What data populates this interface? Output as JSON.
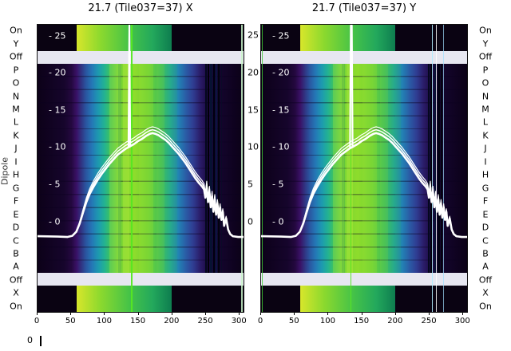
{
  "figure": {
    "bg": "#ffffff"
  },
  "chart_data": {
    "type": "heatmap",
    "panels": [
      {
        "title": "21.7 (Tile037=37) X",
        "right_axis_labels": true,
        "spike": [
          [
            136,
            10.05
          ],
          [
            137.3,
            26.4
          ],
          [
            138.6,
            10.15
          ]
        ],
        "stripes": [
          {
            "x": 140,
            "w": 1.5,
            "c": "#55e822",
            "a": 0.95,
            "span": "full",
            "name": "bright-green-line"
          },
          {
            "x": 305,
            "w": 1.2,
            "c": "#c8f5c8",
            "a": 0.85,
            "span": "full",
            "name": "bright-line"
          },
          {
            "x": 251,
            "w": 2,
            "c": "#04081e",
            "span": "main",
            "name": "dark-stripe"
          },
          {
            "x": 254.5,
            "w": 1.5,
            "c": "#000008",
            "span": "main",
            "name": "dark-stripe"
          },
          {
            "x": 258,
            "w": 2.5,
            "c": "#071233",
            "span": "main",
            "name": "dark-stripe"
          },
          {
            "x": 263,
            "w": 2,
            "c": "#000010",
            "span": "main",
            "name": "dark-stripe"
          },
          {
            "x": 266.5,
            "w": 1.5,
            "c": "#0a1640",
            "span": "main",
            "name": "dark-stripe"
          },
          {
            "x": 270,
            "w": 2,
            "c": "#02040f",
            "span": "main",
            "name": "dark-stripe"
          },
          {
            "x": 274,
            "w": 1.5,
            "c": "#0a0a28",
            "span": "main",
            "name": "dark-stripe"
          }
        ]
      },
      {
        "title": "21.7 (Tile037=37) Y",
        "right_axis_labels": false,
        "spike": [
          [
            133,
            9.9
          ],
          [
            134.2,
            26.4
          ],
          [
            135.6,
            26.4
          ],
          [
            136.8,
            10.0
          ]
        ],
        "stripes": [
          {
            "x": 1,
            "w": 1.5,
            "c": "#3fca35",
            "a": 0.8,
            "span": "full",
            "name": "bright-green-line"
          },
          {
            "x": 133.5,
            "w": 1.2,
            "c": "#55e822",
            "a": 0.95,
            "span": "full",
            "name": "bright-green-line"
          },
          {
            "x": 249,
            "w": 2,
            "c": "#04081e",
            "span": "main",
            "name": "dark-stripe"
          },
          {
            "x": 253,
            "w": 3,
            "c": "#000008",
            "span": "main",
            "name": "dark-stripe"
          },
          {
            "x": 259,
            "w": 2,
            "c": "#071233",
            "span": "main",
            "name": "dark-stripe"
          },
          {
            "x": 264,
            "w": 3,
            "c": "#000010",
            "span": "main",
            "name": "dark-stripe"
          },
          {
            "x": 269,
            "w": 2,
            "c": "#02040f",
            "span": "main",
            "name": "dark-stripe"
          },
          {
            "x": 256,
            "w": 1,
            "c": "#b0ecff",
            "a": 0.9,
            "span": "full",
            "name": "bright-line"
          },
          {
            "x": 262,
            "w": 1,
            "c": "#ffffff",
            "a": 0.85,
            "span": "full",
            "name": "bright-line"
          },
          {
            "x": 272,
            "w": 1,
            "c": "#9fe0ff",
            "a": 0.7,
            "span": "full",
            "name": "bright-line"
          }
        ]
      }
    ],
    "x_ticks": [
      0,
      50,
      100,
      150,
      200,
      250,
      300
    ],
    "x_range": [
      0,
      308
    ],
    "y_ticks": [
      25,
      20,
      15,
      10,
      5,
      0
    ],
    "y_range_view": [
      -12.2,
      26.5
    ],
    "row_labels": [
      "On",
      "Y",
      "Off",
      "P",
      "O",
      "N",
      "M",
      "L",
      "K",
      "J",
      "I",
      "H",
      "G",
      "F",
      "E",
      "D",
      "C",
      "B",
      "A",
      "Off",
      "X",
      "On"
    ],
    "dipole_axis_label": "Dipole",
    "corner_label": "0",
    "heatmap": {
      "row_zones": {
        "top_ref": [
          0,
          2
        ],
        "gap_top": [
          2,
          3
        ],
        "main": [
          3,
          19
        ],
        "gap_bottom": [
          19,
          20
        ],
        "bottom_ref": [
          20,
          22
        ]
      },
      "colormap_stops": [
        {
          "p": 0.0,
          "c": "#0c0118"
        },
        {
          "p": 0.13,
          "c": "#16052c"
        },
        {
          "p": 0.165,
          "c": "#24083f"
        },
        {
          "p": 0.19,
          "c": "#3a1166"
        },
        {
          "p": 0.21,
          "c": "#31307f"
        },
        {
          "p": 0.235,
          "c": "#2a55a0"
        },
        {
          "p": 0.265,
          "c": "#2478b6"
        },
        {
          "p": 0.295,
          "c": "#1d9ab0"
        },
        {
          "p": 0.325,
          "c": "#23b292"
        },
        {
          "p": 0.355,
          "c": "#3fc45c"
        },
        {
          "p": 0.4,
          "c": "#7ad634"
        },
        {
          "p": 0.47,
          "c": "#8edc2c"
        },
        {
          "p": 0.54,
          "c": "#6fd236"
        },
        {
          "p": 0.6,
          "c": "#3fc05a"
        },
        {
          "p": 0.645,
          "c": "#27ab8c"
        },
        {
          "p": 0.685,
          "c": "#2282b4"
        },
        {
          "p": 0.72,
          "c": "#2a5ca6"
        },
        {
          "p": 0.755,
          "c": "#2f3d92"
        },
        {
          "p": 0.79,
          "c": "#2a1c68"
        },
        {
          "p": 0.825,
          "c": "#1d0a44"
        },
        {
          "p": 0.87,
          "c": "#150530"
        },
        {
          "p": 1.0,
          "c": "#0b0116"
        }
      ],
      "ref_segment": {
        "x0": 58,
        "x1": 200,
        "stops": [
          {
            "p": 0,
            "c": "#d8e62b"
          },
          {
            "p": 0.25,
            "c": "#8cd92e"
          },
          {
            "p": 0.55,
            "c": "#46c347"
          },
          {
            "p": 0.8,
            "c": "#23a85c"
          },
          {
            "p": 1,
            "c": "#0e7d4f"
          }
        ]
      },
      "texture_columns": [
        {
          "x": 108,
          "w": 14,
          "c": "#c4ec38",
          "a": 0.25
        },
        {
          "x": 128,
          "w": 8,
          "c": "#cdf23f",
          "a": 0.28
        },
        {
          "x": 152,
          "w": 18,
          "c": "#a6e433",
          "a": 0.2
        },
        {
          "x": 178,
          "w": 10,
          "c": "#93dc3a",
          "a": 0.16
        },
        {
          "x": 120,
          "w": 4,
          "c": "#1f8a60",
          "a": 0.25
        },
        {
          "x": 200,
          "w": 7,
          "c": "#2aa57e",
          "a": 0.18
        }
      ],
      "gap_color": "#e7e7f1",
      "ref_bg": "#0a0312"
    },
    "line_profile": {
      "color": "#ffffff",
      "bundle_offsets": [
        0,
        0.45,
        0.85
      ],
      "points": [
        [
          0,
          -2
        ],
        [
          30,
          -2.05
        ],
        [
          45,
          -2.1
        ],
        [
          52,
          -1.95
        ],
        [
          58,
          -1.4
        ],
        [
          63,
          -0.3
        ],
        [
          68,
          1.2
        ],
        [
          73,
          2.6
        ],
        [
          78,
          3.7
        ],
        [
          84,
          4.7
        ],
        [
          90,
          5.6
        ],
        [
          96,
          6.4
        ],
        [
          102,
          7.1
        ],
        [
          108,
          7.8
        ],
        [
          114,
          8.4
        ],
        [
          120,
          9.0
        ],
        [
          126,
          9.4
        ],
        [
          132,
          9.8
        ],
        [
          138,
          10.1
        ],
        [
          144,
          10.4
        ],
        [
          150,
          10.8
        ],
        [
          156,
          11.1
        ],
        [
          162,
          11.5
        ],
        [
          168,
          11.8
        ],
        [
          172,
          11.9
        ],
        [
          176,
          11.8
        ],
        [
          181,
          11.6
        ],
        [
          186,
          11.3
        ],
        [
          191,
          11.0
        ],
        [
          196,
          10.6
        ],
        [
          201,
          10.1
        ],
        [
          206,
          9.6
        ],
        [
          211,
          9.1
        ],
        [
          216,
          8.5
        ],
        [
          221,
          7.9
        ],
        [
          226,
          7.2
        ],
        [
          231,
          6.5
        ],
        [
          236,
          5.8
        ],
        [
          241,
          5.2
        ],
        [
          246,
          4.7
        ],
        [
          249,
          4.3
        ],
        [
          251,
          3.2
        ],
        [
          253,
          4.6
        ],
        [
          255,
          2.6
        ],
        [
          257,
          4.0
        ],
        [
          259,
          1.9
        ],
        [
          261,
          3.4
        ],
        [
          263,
          1.3
        ],
        [
          265,
          3.0
        ],
        [
          267,
          0.9
        ],
        [
          269,
          2.4
        ],
        [
          271,
          0.5
        ],
        [
          273,
          1.9
        ],
        [
          275,
          0.2
        ],
        [
          277,
          1.3
        ],
        [
          279,
          -0.6
        ],
        [
          282,
          0.4
        ],
        [
          285,
          -1.1
        ],
        [
          288,
          -1.7
        ],
        [
          292,
          -2.0
        ],
        [
          300,
          -2.1
        ],
        [
          308,
          -2.1
        ]
      ]
    }
  }
}
